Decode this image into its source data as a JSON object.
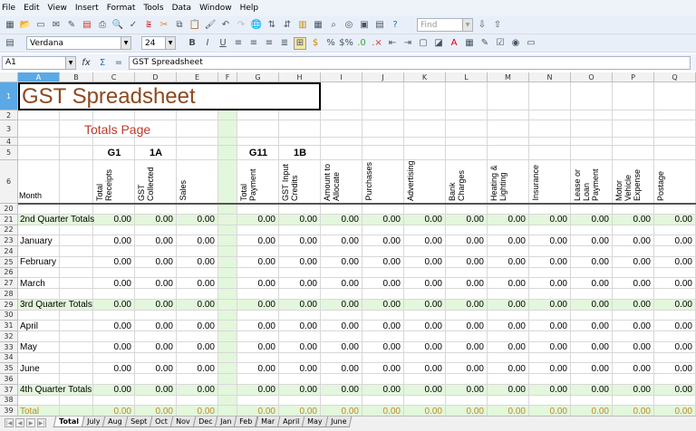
{
  "menu": [
    "File",
    "Edit",
    "View",
    "Insert",
    "Format",
    "Tools",
    "Data",
    "Window",
    "Help"
  ],
  "toolbar": {
    "find_placeholder": "Find",
    "font_name": "Verdana",
    "font_size": "24",
    "bold": "B",
    "italic": "I",
    "underline": "U"
  },
  "formula_bar": {
    "cell_ref": "A1",
    "content": "GST Spreadsheet",
    "fx": "fx",
    "sum": "Σ",
    "equals": "="
  },
  "columns": [
    "A",
    "B",
    "C",
    "D",
    "E",
    "F",
    "G",
    "H",
    "I",
    "J",
    "K",
    "L",
    "M",
    "N",
    "O",
    "P",
    "Q"
  ],
  "title": "GST Spreadsheet",
  "subtitle": "Totals Page",
  "codes": {
    "C": "G1",
    "D": "1A",
    "G": "G11",
    "H": "1B"
  },
  "month_label": "Month",
  "headers": {
    "C": "Total Receipts",
    "D": "GST Collected",
    "E": "Sales",
    "G": "Total Payment",
    "H": "GST Input Credits",
    "I": "Amount to Allocate",
    "J": "Purchases",
    "K": "Advertising",
    "L": "Bank Charges",
    "M": "Heating & Lighting",
    "N": "Insurance",
    "O": "Lease or Loan Payment",
    "P": "Motor Vehicle Expense",
    "Q": "Postage"
  },
  "rows": [
    {
      "n": "20",
      "label": "",
      "kind": "blank"
    },
    {
      "n": "21",
      "label": "2nd Quarter Totals",
      "kind": "quarter"
    },
    {
      "n": "22",
      "label": "",
      "kind": "blank"
    },
    {
      "n": "23",
      "label": "January",
      "kind": "month"
    },
    {
      "n": "24",
      "label": "",
      "kind": "blank"
    },
    {
      "n": "25",
      "label": "February",
      "kind": "month"
    },
    {
      "n": "26",
      "label": "",
      "kind": "blank"
    },
    {
      "n": "27",
      "label": "March",
      "kind": "month"
    },
    {
      "n": "28",
      "label": "",
      "kind": "blank"
    },
    {
      "n": "29",
      "label": "3rd Quarter Totals",
      "kind": "quarter"
    },
    {
      "n": "30",
      "label": "",
      "kind": "blank"
    },
    {
      "n": "31",
      "label": "April",
      "kind": "month"
    },
    {
      "n": "32",
      "label": "",
      "kind": "blank"
    },
    {
      "n": "33",
      "label": "May",
      "kind": "month"
    },
    {
      "n": "34",
      "label": "",
      "kind": "blank"
    },
    {
      "n": "35",
      "label": "June",
      "kind": "month"
    },
    {
      "n": "36",
      "label": "",
      "kind": "blank"
    },
    {
      "n": "37",
      "label": "4th Quarter Totals",
      "kind": "quarter"
    },
    {
      "n": "38",
      "label": "",
      "kind": "blank"
    },
    {
      "n": "39",
      "label": "Total",
      "kind": "total"
    }
  ],
  "value": "0.00",
  "sheet_tabs": [
    "Total",
    "July",
    "Aug",
    "Sept",
    "Oct",
    "Nov",
    "Dec",
    "Jan",
    "Feb",
    "Mar",
    "April",
    "May",
    "June"
  ],
  "active_tab": "Total",
  "colors": {
    "title": "#8b4a1f",
    "subtitle": "#c0392b",
    "total": "#c08a2a",
    "green": "#e3f7dc",
    "selected": "#5aa9e6"
  }
}
